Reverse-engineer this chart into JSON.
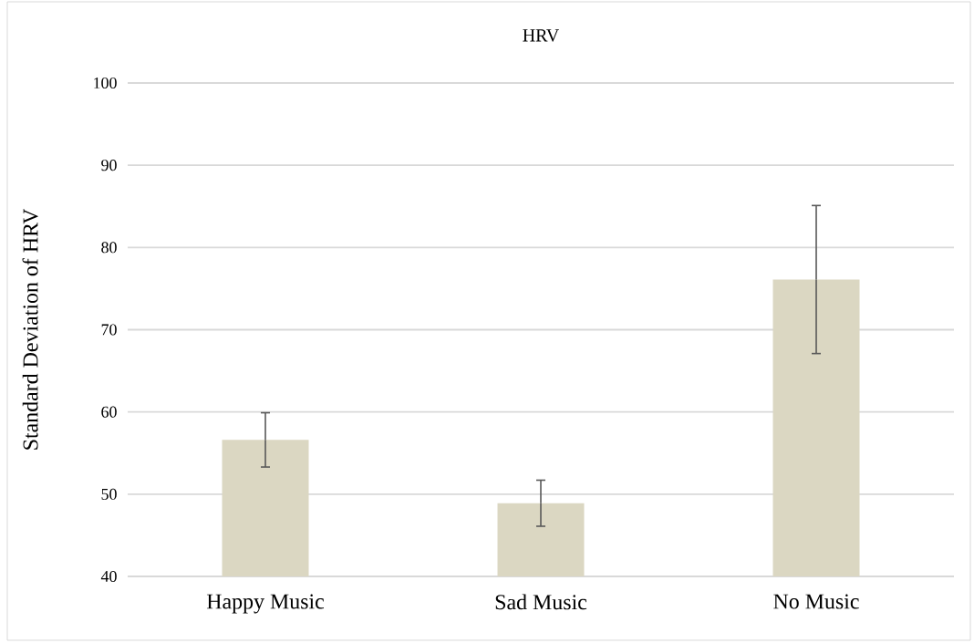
{
  "chart_data": {
    "type": "bar",
    "title": "HRV",
    "ylabel": "Standard Deviation of HRV",
    "categories": [
      "Happy Music",
      "Sad Music",
      "No Music"
    ],
    "values": [
      56.6,
      48.9,
      76.1
    ],
    "errors": [
      3.3,
      2.8,
      9.0
    ],
    "color": "#dbd7c2",
    "ylim": [
      40,
      100
    ],
    "yticks": [
      40,
      50,
      60,
      70,
      80,
      90,
      100
    ],
    "grid": "y"
  }
}
